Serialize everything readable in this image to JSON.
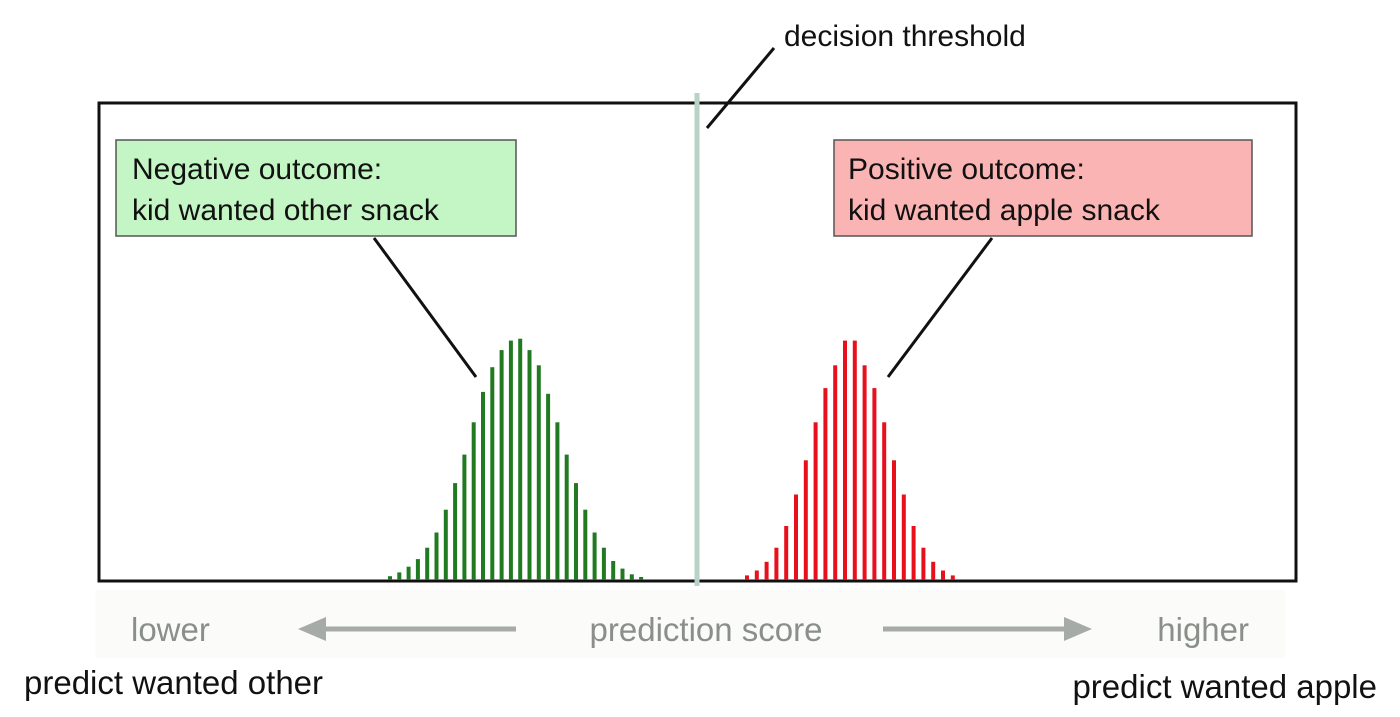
{
  "threshold_label": "decision threshold",
  "negative_box": {
    "line1": "Negative outcome:",
    "line2": "kid wanted other snack",
    "fill": "#c4f5c4"
  },
  "positive_box": {
    "line1": "Positive outcome:",
    "line2": "kid wanted apple snack",
    "fill": "#fbb4b4"
  },
  "axis": {
    "lower": "lower",
    "center": "prediction score",
    "higher": "higher"
  },
  "predict_other": "predict wanted other",
  "predict_apple": "predict wanted apple",
  "colors": {
    "negative_bars": "#217a21",
    "positive_bars": "#e8101c",
    "threshold_line": "#b7d2c6",
    "axis_text": "#8a8f88",
    "axis_arrow": "#a7aba6"
  },
  "chart_data": {
    "type": "bar",
    "series": [
      {
        "values": [
          0.01,
          0.02,
          0.035,
          0.055,
          0.085,
          0.125,
          0.185,
          0.255,
          0.33,
          0.415,
          0.495,
          0.56,
          0.605,
          0.63,
          0.635,
          0.605,
          0.565,
          0.49,
          0.415,
          0.33,
          0.255,
          0.185,
          0.125,
          0.085,
          0.05,
          0.03,
          0.015,
          0.008
        ]
      },
      {
        "values": [
          0.012,
          0.025,
          0.048,
          0.085,
          0.142,
          0.225,
          0.315,
          0.415,
          0.505,
          0.565,
          0.63,
          0.63,
          0.565,
          0.505,
          0.415,
          0.315,
          0.225,
          0.142,
          0.085,
          0.048,
          0.025,
          0.012
        ]
      }
    ]
  }
}
